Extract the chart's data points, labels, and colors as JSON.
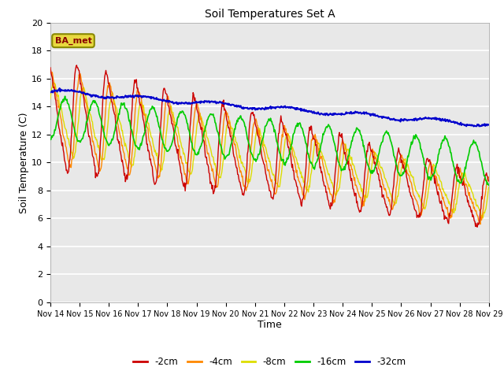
{
  "title": "Soil Temperatures Set A",
  "xlabel": "Time",
  "ylabel": "Soil Temperature (C)",
  "ylim": [
    0,
    20
  ],
  "x_tick_labels": [
    "Nov 14",
    "Nov 15",
    "Nov 16",
    "Nov 17",
    "Nov 18",
    "Nov 19",
    "Nov 20",
    "Nov 21",
    "Nov 22",
    "Nov 23",
    "Nov 24",
    "Nov 25",
    "Nov 26",
    "Nov 27",
    "Nov 28",
    "Nov 29"
  ],
  "colors": {
    "-2cm": "#cc0000",
    "-4cm": "#ff8800",
    "-8cm": "#dddd00",
    "-16cm": "#00cc00",
    "-32cm": "#0000cc"
  },
  "legend_label": "BA_met",
  "bg_color": "#e8e8e8"
}
